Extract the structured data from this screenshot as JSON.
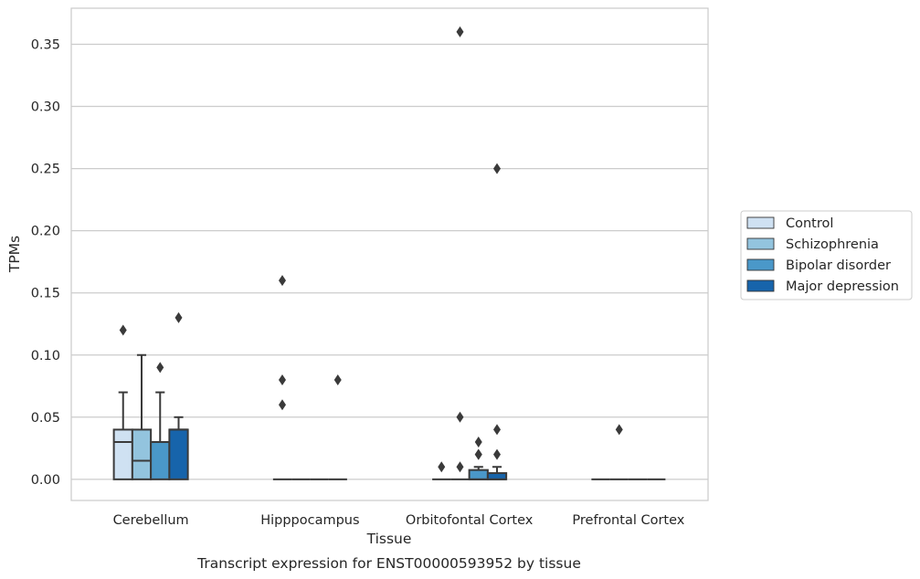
{
  "chart_data": {
    "type": "box",
    "title": "Transcript expression for ENST00000593952 by tissue",
    "xlabel": "Tissue",
    "ylabel": "TPMs",
    "ylim": [
      -0.017,
      0.379
    ],
    "yticks": [
      "0.00",
      "0.05",
      "0.10",
      "0.15",
      "0.20",
      "0.25",
      "0.30",
      "0.35"
    ],
    "ytick_values": [
      0,
      0.05,
      0.1,
      0.15,
      0.2,
      0.25,
      0.3,
      0.35
    ],
    "grid": "horizontal",
    "legend_position": "right",
    "categories": [
      "Cerebellum",
      "Hipppocampus",
      "Orbitofontal Cortex",
      "Prefrontal Cortex"
    ],
    "series": [
      {
        "name": "Control",
        "color": "#cfe1f2",
        "boxes": [
          {
            "q1": 0,
            "median": 0.03,
            "q3": 0.04,
            "whisker_low": 0,
            "whisker_high": 0.07,
            "outliers": [
              0.12
            ]
          },
          {
            "q1": 0,
            "median": 0,
            "q3": 0,
            "whisker_low": 0,
            "whisker_high": 0,
            "outliers": [
              0.16,
              0.08,
              0.06
            ]
          },
          {
            "q1": 0,
            "median": 0,
            "q3": 0,
            "whisker_low": 0,
            "whisker_high": 0,
            "outliers": [
              0.01
            ]
          },
          {
            "q1": 0,
            "median": 0,
            "q3": 0,
            "whisker_low": 0,
            "whisker_high": 0,
            "outliers": []
          }
        ]
      },
      {
        "name": "Schizophrenia",
        "color": "#93c4de",
        "boxes": [
          {
            "q1": 0,
            "median": 0.015,
            "q3": 0.04,
            "whisker_low": 0,
            "whisker_high": 0.1,
            "outliers": []
          },
          {
            "q1": 0,
            "median": 0,
            "q3": 0,
            "whisker_low": 0,
            "whisker_high": 0,
            "outliers": []
          },
          {
            "q1": 0,
            "median": 0,
            "q3": 0,
            "whisker_low": 0,
            "whisker_high": 0,
            "outliers": [
              0.36,
              0.05,
              0.01
            ]
          },
          {
            "q1": 0,
            "median": 0,
            "q3": 0,
            "whisker_low": 0,
            "whisker_high": 0,
            "outliers": [
              0.04
            ]
          }
        ]
      },
      {
        "name": "Bipolar disorder",
        "color": "#4a98c9",
        "boxes": [
          {
            "q1": 0,
            "median": 0.03,
            "q3": 0.03,
            "whisker_low": 0,
            "whisker_high": 0.07,
            "outliers": [
              0.09
            ]
          },
          {
            "q1": 0,
            "median": 0,
            "q3": 0,
            "whisker_low": 0,
            "whisker_high": 0,
            "outliers": []
          },
          {
            "q1": 0,
            "median": 0,
            "q3": 0.0075,
            "whisker_low": 0,
            "whisker_high": 0.01,
            "outliers": [
              0.03,
              0.02,
              0.02
            ]
          },
          {
            "q1": 0,
            "median": 0,
            "q3": 0,
            "whisker_low": 0,
            "whisker_high": 0,
            "outliers": []
          }
        ]
      },
      {
        "name": "Major depression",
        "color": "#1764ab",
        "boxes": [
          {
            "q1": 0,
            "median": 0.04,
            "q3": 0.04,
            "whisker_low": 0,
            "whisker_high": 0.05,
            "outliers": [
              0.13
            ]
          },
          {
            "q1": 0,
            "median": 0,
            "q3": 0,
            "whisker_low": 0,
            "whisker_high": 0,
            "outliers": [
              0.08
            ]
          },
          {
            "q1": 0,
            "median": 0,
            "q3": 0.005,
            "whisker_low": 0,
            "whisker_high": 0.01,
            "outliers": [
              0.25,
              0.04,
              0.02
            ]
          },
          {
            "q1": 0,
            "median": 0,
            "q3": 0,
            "whisker_low": 0,
            "whisker_high": 0,
            "outliers": []
          }
        ]
      }
    ]
  }
}
